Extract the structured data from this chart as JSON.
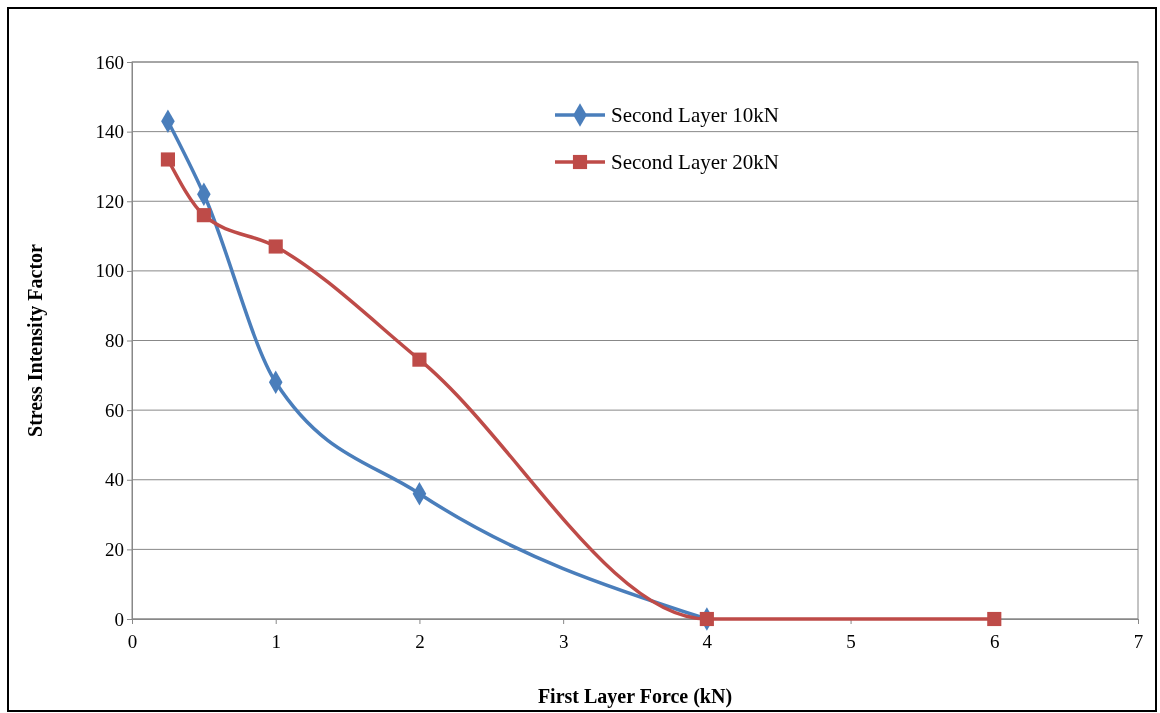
{
  "chart_data": {
    "type": "line",
    "xlabel": "First Layer Force (kN)",
    "ylabel": "Stress Intensity Factor",
    "xlim": [
      0,
      7
    ],
    "xticks": [
      0,
      1,
      2,
      3,
      4,
      5,
      6,
      7
    ],
    "ylim": [
      0,
      160
    ],
    "yticks": [
      0,
      20,
      40,
      60,
      80,
      100,
      120,
      140,
      160
    ],
    "grid": "y",
    "legend": "top right",
    "series": [
      {
        "name": "Second Layer 10kN",
        "color": "#4a7ebb",
        "marker": "diamond",
        "x": [
          0.25,
          0.5,
          1,
          2,
          4
        ],
        "values": [
          143,
          122,
          68,
          36,
          0
        ]
      },
      {
        "name": "Second Layer 20kN",
        "color": "#be4b48",
        "marker": "square",
        "x": [
          0.25,
          0.5,
          1,
          2,
          4,
          6
        ],
        "values": [
          132,
          116,
          107,
          74.5,
          0,
          0
        ]
      }
    ]
  }
}
